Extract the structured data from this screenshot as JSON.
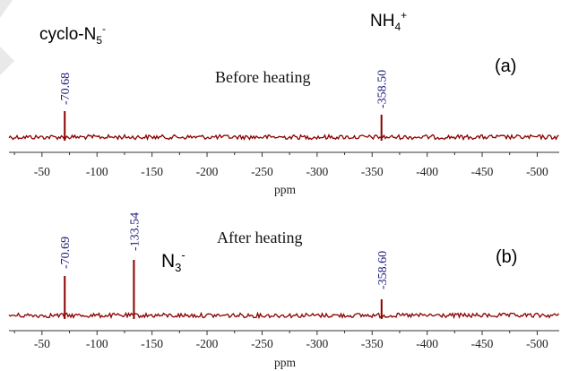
{
  "chart_data": [
    {
      "type": "line",
      "panel_label": "(a)",
      "condition": "Before heating",
      "xlabel": "ppm",
      "xlim": [
        -20,
        -520
      ],
      "x_reversed": true,
      "ticks": [
        -50,
        -100,
        -150,
        -200,
        -250,
        -300,
        -350,
        -400,
        -450,
        -500
      ],
      "tick_labels": [
        "-50",
        "-100",
        "-150",
        "-200",
        "-250",
        "-300",
        "-350",
        "-400",
        "-450",
        "-500"
      ],
      "peaks": [
        {
          "x": -70.68,
          "label": "-70.68",
          "rel_height": 0.6
        },
        {
          "x": -358.5,
          "label": "-358.50",
          "rel_height": 0.45
        }
      ],
      "series_color": "#8b0000",
      "annotations": [
        {
          "text": "cyclo-N",
          "sub": "5",
          "sup": "-"
        },
        {
          "text": "NH",
          "sub": "4",
          "sup": "+"
        }
      ]
    },
    {
      "type": "line",
      "panel_label": "(b)",
      "condition": "After heating",
      "xlabel": "ppm",
      "xlim": [
        -20,
        -520
      ],
      "x_reversed": true,
      "ticks": [
        -50,
        -100,
        -150,
        -200,
        -250,
        -300,
        -350,
        -400,
        -450,
        -500
      ],
      "tick_labels": [
        "-50",
        "-100",
        "-150",
        "-200",
        "-250",
        "-300",
        "-350",
        "-400",
        "-450",
        "-500"
      ],
      "peaks": [
        {
          "x": -70.69,
          "label": "-70.69",
          "rel_height": 0.45
        },
        {
          "x": -133.54,
          "label": "-133.54",
          "rel_height": 0.6
        },
        {
          "x": -358.6,
          "label": "-358.60",
          "rel_height": 0.2
        }
      ],
      "series_color": "#8b0000",
      "annotations": [
        {
          "text": "N",
          "sub": "3",
          "sup": "-"
        }
      ]
    }
  ]
}
